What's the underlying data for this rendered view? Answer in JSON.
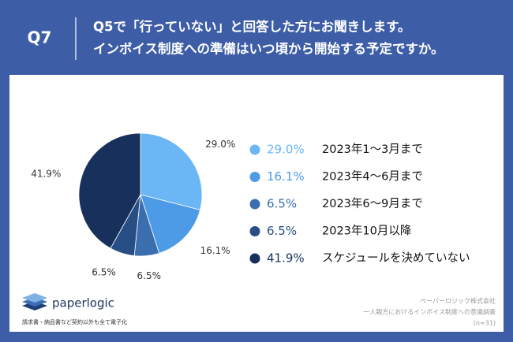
{
  "question_number": "Q7",
  "chart_data": {
    "type": "pie",
    "title": "Q5で「行っていない」と回答した方にお聞きします。",
    "subtitle": "インボイス制度への準備はいつ頃から開始する予定ですか。",
    "categories": [
      "2023年1〜3月まで",
      "2023年4〜6月まで",
      "2023年6〜9月まで",
      "2023年10月以降",
      "スケジュールを決めていない"
    ],
    "values": [
      29.0,
      16.1,
      6.5,
      6.5,
      41.9
    ],
    "value_labels": [
      "29.0%",
      "16.1%",
      "6.5%",
      "6.5%",
      "41.9%"
    ],
    "colors": [
      "#6bb6f4",
      "#4d9ae6",
      "#3a6eae",
      "#284e86",
      "#17305c"
    ]
  },
  "footer": {
    "logo": "paperlogic",
    "tagline": "請求書・納品書など契約以外も全て電子化",
    "source": [
      "ペーパーロジック株式会社",
      "一人親方におけるインボイス制度への意識調査",
      "(n=31)"
    ]
  }
}
